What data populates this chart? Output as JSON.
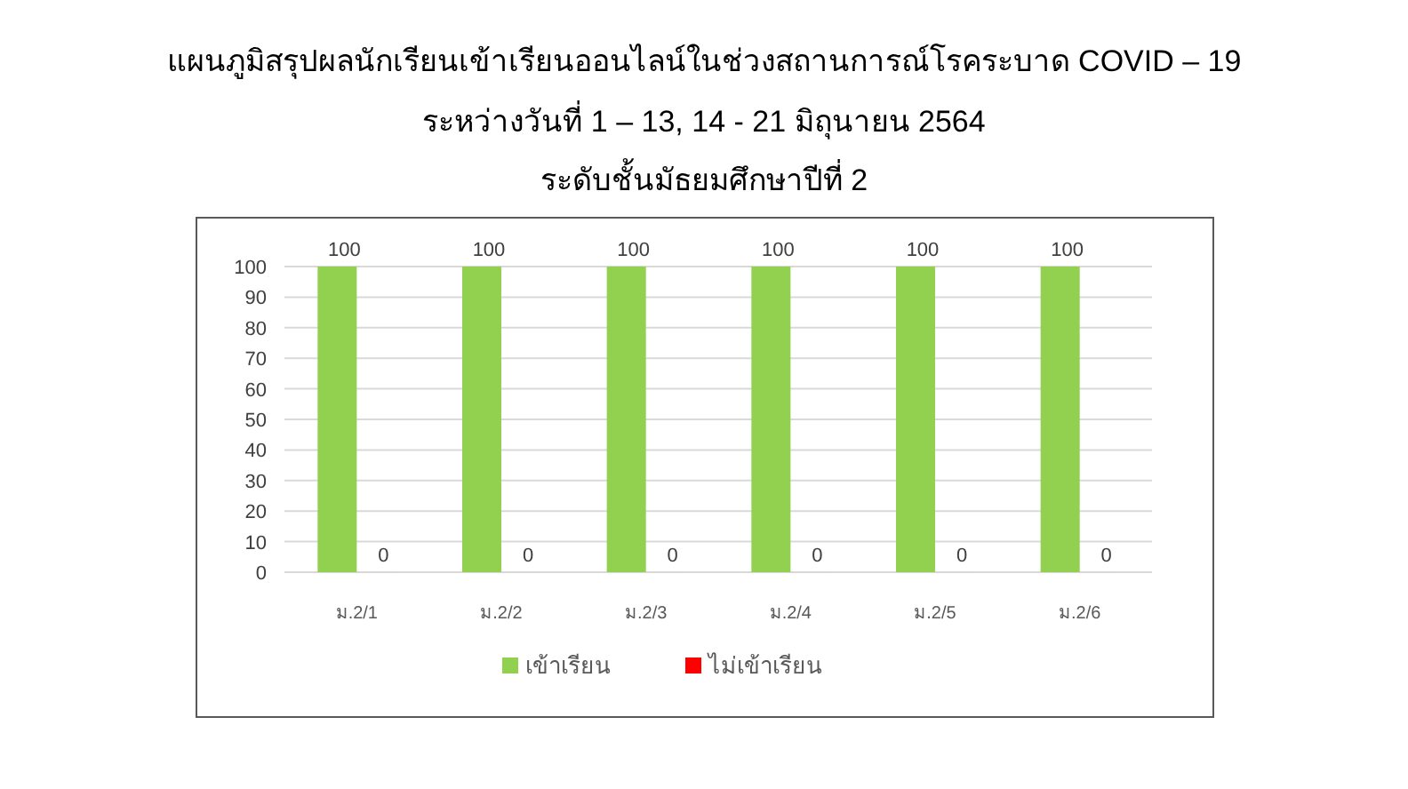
{
  "chart_data": {
    "type": "bar",
    "title": "แผนภูมิสรุปผลนักเรียนเข้าเรียนออนไลน์ในช่วงสถานการณ์โรคระบาด COVID – 19",
    "subtitle": "ระหว่างวันที่ 1 – 13, 14 - 21 มิถุนายน  2564\nระดับชั้นมัธยมศึกษาปีที่ 2",
    "categories": [
      "ม.2/1",
      "ม.2/2",
      "ม.2/3",
      "ม.2/4",
      "ม.2/5",
      "ม.2/6"
    ],
    "series": [
      {
        "name": "เข้าเรียน",
        "color": "#92d050",
        "values": [
          100,
          100,
          100,
          100,
          100,
          100
        ]
      },
      {
        "name": "ไม่เข้าเรียน",
        "color": "#ff0000",
        "values": [
          0,
          0,
          0,
          0,
          0,
          0
        ]
      }
    ],
    "ylim": [
      0,
      100
    ],
    "yticks": [
      0,
      10,
      20,
      30,
      40,
      50,
      60,
      70,
      80,
      90,
      100
    ],
    "grid": "y",
    "legend": "bottom",
    "data_labels": true
  }
}
